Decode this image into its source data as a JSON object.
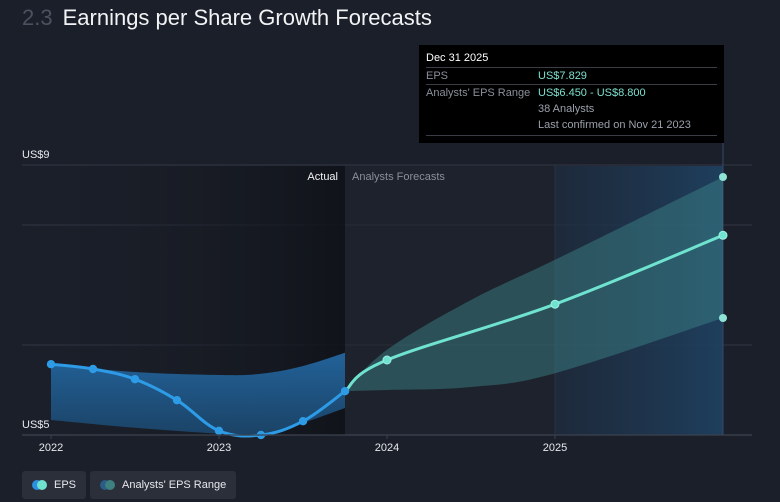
{
  "header": {
    "section_number": "2.3",
    "title": "Earnings per Share Growth Forecasts"
  },
  "tooltip": {
    "date": "Dec 31 2025",
    "rows": [
      {
        "label": "EPS",
        "value": "US$7.829"
      },
      {
        "label": "Analysts' EPS Range",
        "value": "US$6.450 - US$8.800",
        "analysts": "38 Analysts",
        "confirmed": "Last confirmed on Nov 21 2023"
      }
    ]
  },
  "legend": [
    {
      "label": "EPS",
      "colors": [
        "#2d8fe0",
        "#6fe3d0"
      ]
    },
    {
      "label": "Analysts' EPS Range",
      "colors": [
        "#2a5c86",
        "#3e7f80"
      ]
    }
  ],
  "colors": {
    "actual_line": "#2d9be6",
    "forecast_line": "#6fe3d0",
    "actual_band": "#1f5a8c",
    "forecast_band": "#3a7a7e",
    "gridline": "#2e3340",
    "background": "#1b1f29"
  },
  "chart_data": {
    "type": "line",
    "title": "Earnings per Share Growth Forecasts",
    "xlabel": "",
    "ylabel": "",
    "x_ticks": [
      2022,
      2023,
      2024,
      2025
    ],
    "x_range": [
      2022,
      2026
    ],
    "y_ticks": [
      {
        "value": 9,
        "label": "US$9"
      },
      {
        "value": 5,
        "label": "US$5"
      }
    ],
    "y_gridlines": [
      9,
      8,
      6,
      4.5
    ],
    "ylim": [
      4.5,
      9
    ],
    "region_labels": {
      "actual": "Actual",
      "forecast": "Analysts Forecasts"
    },
    "divider_x": 2023.75,
    "highlight_x": [
      2025.0,
      2026.0
    ],
    "series": [
      {
        "name": "EPS (Actual)",
        "x": [
          2022.0,
          2022.25,
          2022.5,
          2022.75,
          2023.0,
          2023.25,
          2023.5,
          2023.75
        ],
        "values": [
          5.68,
          5.6,
          5.43,
          5.08,
          4.57,
          4.5,
          4.73,
          5.23
        ]
      },
      {
        "name": "EPS (Forecast)",
        "x": [
          2023.75,
          2024.0,
          2025.0,
          2026.0
        ],
        "values": [
          5.23,
          5.75,
          6.68,
          7.829
        ]
      },
      {
        "name": "Analysts' EPS Range (Actual band)",
        "x": [
          2022.0,
          2022.5,
          2023.0,
          2023.25,
          2023.5,
          2023.75
        ],
        "high": [
          5.68,
          5.55,
          5.5,
          5.52,
          5.65,
          5.87
        ],
        "low": [
          4.75,
          4.62,
          4.52,
          4.48,
          4.7,
          4.95
        ]
      },
      {
        "name": "Analysts' EPS Range (Forecast band)",
        "x": [
          2023.75,
          2024.0,
          2024.5,
          2025.0,
          2026.0
        ],
        "high": [
          5.23,
          5.92,
          6.75,
          7.42,
          8.8
        ],
        "low": [
          5.23,
          5.25,
          5.3,
          5.53,
          6.45
        ]
      }
    ]
  }
}
